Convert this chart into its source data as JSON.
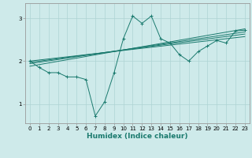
{
  "title": "",
  "xlabel": "Humidex (Indice chaleur)",
  "ylabel": "",
  "bg_color": "#ceeaea",
  "line_color": "#1a7a6e",
  "xlim": [
    -0.5,
    23.5
  ],
  "ylim": [
    0.55,
    3.35
  ],
  "yticks": [
    1,
    2,
    3
  ],
  "xticks": [
    0,
    1,
    2,
    3,
    4,
    5,
    6,
    7,
    8,
    9,
    10,
    11,
    12,
    13,
    14,
    15,
    16,
    17,
    18,
    19,
    20,
    21,
    22,
    23
  ],
  "series": {
    "main_line": {
      "x": [
        0,
        1,
        2,
        3,
        4,
        5,
        6,
        7,
        8,
        9,
        10,
        11,
        12,
        13,
        14,
        15,
        16,
        17,
        18,
        19,
        20,
        21,
        22,
        23
      ],
      "y": [
        2.0,
        1.85,
        1.73,
        1.73,
        1.63,
        1.63,
        1.57,
        0.72,
        1.05,
        1.72,
        2.52,
        3.05,
        2.88,
        3.05,
        2.52,
        2.42,
        2.15,
        2.0,
        2.22,
        2.35,
        2.48,
        2.42,
        2.7,
        2.72
      ]
    },
    "line1": {
      "x": [
        0,
        23
      ],
      "y": [
        1.88,
        2.75
      ]
    },
    "line2": {
      "x": [
        0,
        23
      ],
      "y": [
        1.94,
        2.68
      ]
    },
    "line3": {
      "x": [
        0,
        23
      ],
      "y": [
        1.97,
        2.63
      ]
    },
    "line4": {
      "x": [
        0,
        23
      ],
      "y": [
        2.0,
        2.57
      ]
    }
  },
  "grid_color": "#aed4d4",
  "spine_color": "#999999",
  "tick_fontsize": 5.0,
  "xlabel_fontsize": 6.5
}
